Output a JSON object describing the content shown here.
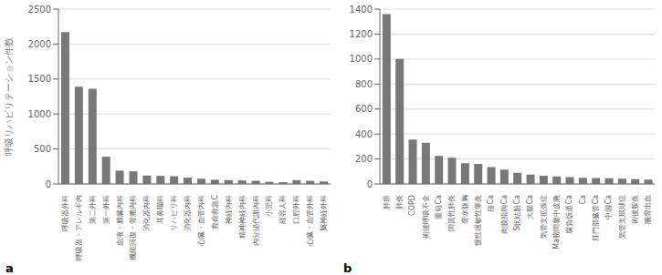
{
  "chart_data": [
    {
      "type": "bar",
      "annotation": "a",
      "ylabel": "呼吸リハビリテーション件数",
      "color": "#787878",
      "grid": true,
      "categories": [
        "呼吸器外科",
        "呼吸器・アレルギ内",
        "第二外科",
        "第一外科",
        "血液・腫臓内科",
        "機能回復・骨膔内科",
        "消化器内科",
        "耳鼻囒科",
        "リハビリ科",
        "消化器内科",
        "心臓・血管内科",
        "救命救急C",
        "神経内科",
        "精神神経内科",
        "内分泌代謝内科",
        "小児科",
        "経容人科",
        "口腔外科",
        "心臓・血管外科",
        "脑神経外科"
      ],
      "values": [
        2170,
        1390,
        1360,
        390,
        190,
        180,
        120,
        115,
        110,
        90,
        75,
        60,
        55,
        50,
        45,
        30,
        25,
        55,
        45,
        35
      ],
      "ylim": [
        0,
        2500
      ],
      "yticks": [
        0,
        500,
        1000,
        1500,
        2000,
        2500
      ]
    },
    {
      "type": "bar",
      "annotation": "b",
      "color": "#787878",
      "grid": true,
      "categories": [
        "肺癌",
        "肺炎",
        "COPD",
        "術後呼吸不全",
        "重筍Ca",
        "間質性肺炎",
        "脅水躯胸",
        "慢性過敏性肇炎",
        "胳Ca",
        "肉膜脂胊Ca",
        "S状結肦Ca",
        "大腸Ca",
        "気管支拡張症",
        "Ma膀間馨中皮腌",
        "腐負饭道Ca",
        "Ca",
        "肝門部臓管Ca",
        "中国Ca",
        "気管支琅球症",
        "術後胺炎",
        "腕脅出血"
      ],
      "values": [
        1360,
        1000,
        355,
        330,
        225,
        210,
        165,
        160,
        135,
        115,
        90,
        75,
        65,
        60,
        55,
        50,
        48,
        45,
        42,
        38,
        35
      ],
      "ylim": [
        0,
        1400
      ],
      "yticks": [
        0,
        200,
        400,
        600,
        800,
        1000,
        1200,
        1400
      ]
    }
  ]
}
